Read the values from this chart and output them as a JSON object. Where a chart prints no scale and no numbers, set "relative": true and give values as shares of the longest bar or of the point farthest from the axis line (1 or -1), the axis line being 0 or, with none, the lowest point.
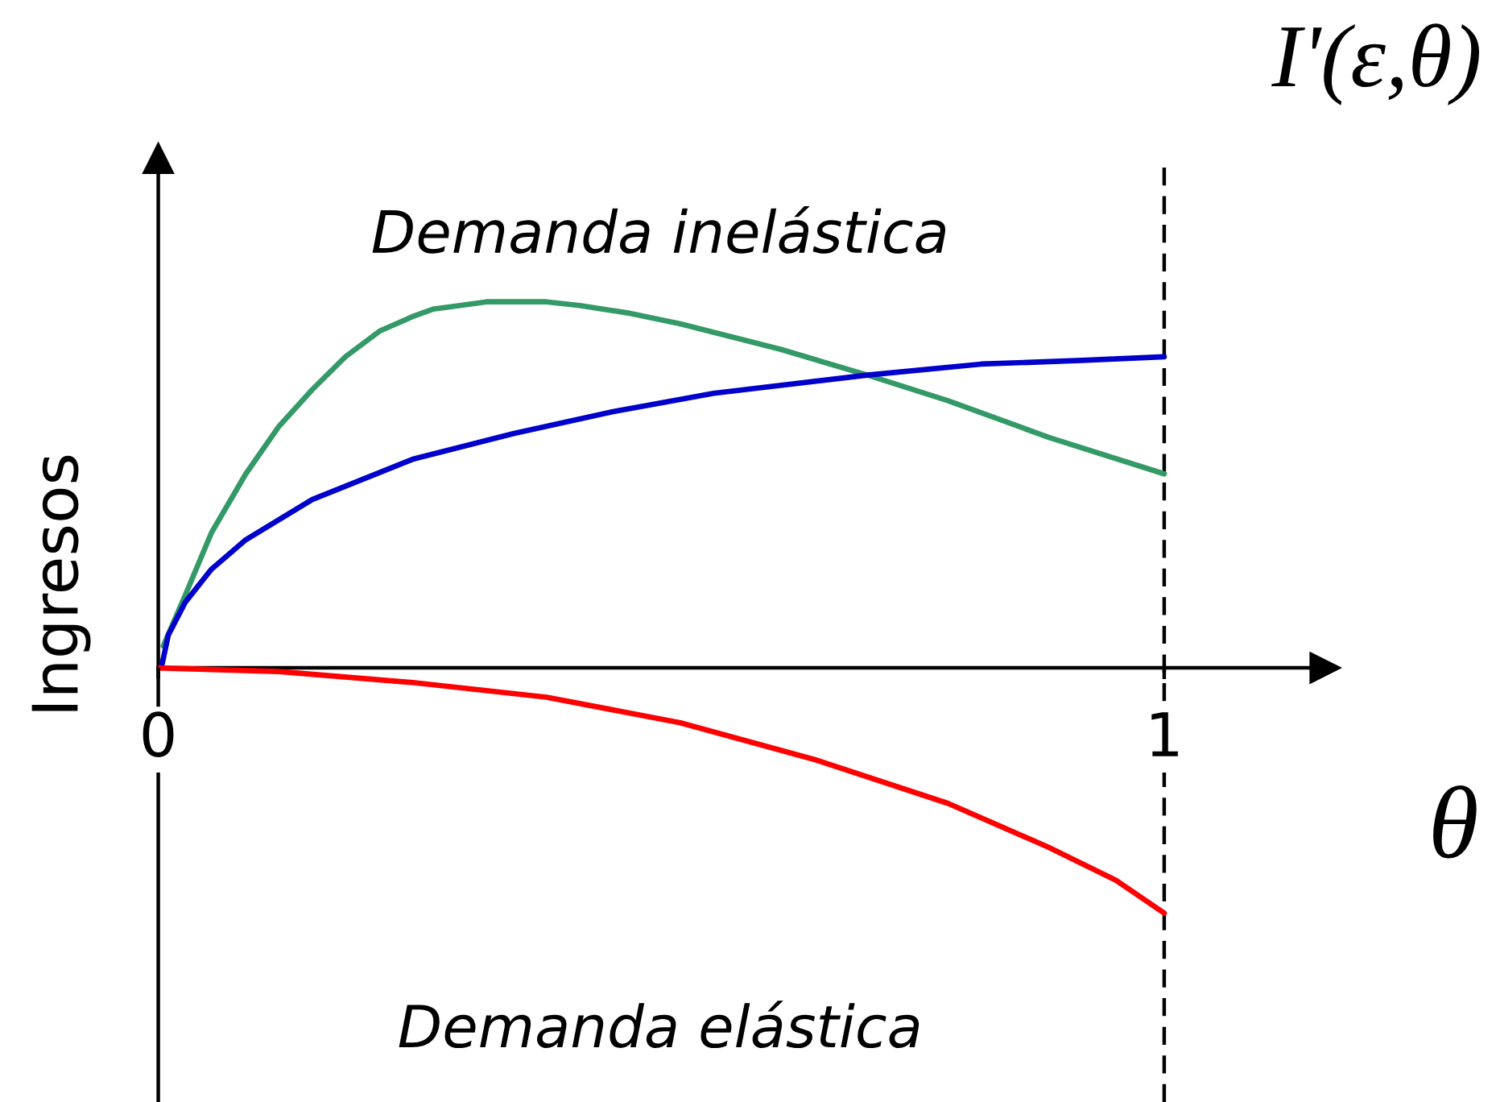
{
  "chart_data": {
    "type": "line",
    "title": "I'(ε,θ)",
    "xlabel": "θ",
    "ylabel": "Ingresos",
    "annotations": [
      "Demanda inelástica",
      "Demanda elástica"
    ],
    "relative": true,
    "line_style": "solid",
    "xlim": [
      0,
      1.16
    ],
    "xticks": [
      0,
      1
    ],
    "series": [
      {
        "color": "#339966",
        "x": [
          0.005,
          0.027,
          0.053,
          0.087,
          0.12,
          0.153,
          0.186,
          0.22,
          0.253,
          0.273,
          0.3,
          0.326,
          0.356,
          0.386,
          0.419,
          0.466,
          0.519,
          0.619,
          0.705,
          0.785,
          0.885,
          1.0
        ],
        "values": [
          0.06,
          0.2,
          0.37,
          0.53,
          0.66,
          0.76,
          0.85,
          0.92,
          0.96,
          0.98,
          0.99,
          1.0,
          1.0,
          1.0,
          0.99,
          0.97,
          0.94,
          0.87,
          0.8,
          0.73,
          0.63,
          0.53
        ]
      },
      {
        "color": "#0000cc",
        "x": [
          0.003,
          0.01,
          0.027,
          0.053,
          0.087,
          0.153,
          0.253,
          0.353,
          0.452,
          0.552,
          0.705,
          0.818,
          0.918,
          1.0
        ],
        "values": [
          0.0,
          0.09,
          0.18,
          0.27,
          0.35,
          0.46,
          0.57,
          0.64,
          0.7,
          0.75,
          0.8,
          0.83,
          0.84,
          0.85
        ]
      },
      {
        "color": "#ff0000",
        "x": [
          0.0,
          0.12,
          0.253,
          0.386,
          0.519,
          0.652,
          0.785,
          0.885,
          0.952,
          1.0
        ],
        "values": [
          0.0,
          -0.01,
          -0.04,
          -0.08,
          -0.15,
          -0.25,
          -0.37,
          -0.49,
          -0.58,
          -0.67
        ]
      }
    ],
    "ref_lines": [
      {
        "axis": "x",
        "value": 1,
        "color": "#000000",
        "line_style": "dashed"
      }
    ]
  }
}
